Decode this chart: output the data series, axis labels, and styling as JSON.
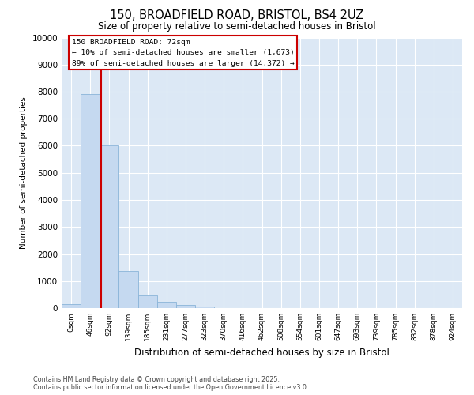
{
  "title_line1": "150, BROADFIELD ROAD, BRISTOL, BS4 2UZ",
  "title_line2": "Size of property relative to semi-detached houses in Bristol",
  "xlabel": "Distribution of semi-detached houses by size in Bristol",
  "ylabel": "Number of semi-detached properties",
  "bar_labels": [
    "0sqm",
    "46sqm",
    "92sqm",
    "139sqm",
    "185sqm",
    "231sqm",
    "277sqm",
    "323sqm",
    "370sqm",
    "416sqm",
    "462sqm",
    "508sqm",
    "554sqm",
    "601sqm",
    "647sqm",
    "693sqm",
    "739sqm",
    "785sqm",
    "832sqm",
    "878sqm",
    "924sqm"
  ],
  "bar_values": [
    150,
    7900,
    6000,
    1380,
    480,
    220,
    130,
    60,
    0,
    0,
    0,
    0,
    0,
    0,
    0,
    0,
    0,
    0,
    0,
    0,
    0
  ],
  "bar_color": "#c5d9f0",
  "bar_edge_color": "#8ab4d8",
  "property_label": "150 BROADFIELD ROAD: 72sqm",
  "pct_smaller": 10,
  "pct_larger": 89,
  "n_smaller": "1,673",
  "n_larger": "14,372",
  "annotation_box_color": "#cc0000",
  "ylim": [
    0,
    10000
  ],
  "yticks": [
    0,
    1000,
    2000,
    3000,
    4000,
    5000,
    6000,
    7000,
    8000,
    9000,
    10000
  ],
  "plot_bg_color": "#dce8f5",
  "fig_bg_color": "#ffffff",
  "grid_color": "#ffffff",
  "footer_line1": "Contains HM Land Registry data © Crown copyright and database right 2025.",
  "footer_line2": "Contains public sector information licensed under the Open Government Licence v3.0."
}
